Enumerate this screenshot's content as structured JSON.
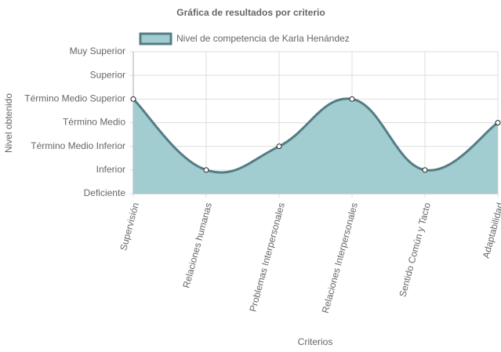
{
  "chart_data": {
    "type": "area",
    "title": "Gráfica de resultados por criterio",
    "x_label": "Criterios",
    "y_label": "Nivel obtenido",
    "categories": [
      "Supervisión",
      "Relaciones humanas",
      "Problemas Interpersonales",
      "Relaciones Interpersonales",
      "Sentido Común y Tacto",
      "Adaptabilidad"
    ],
    "series": [
      {
        "name": "Nivel de competencia de Karla Henández",
        "color": "#547c85",
        "fill": "#a1cdd1",
        "values": [
          4,
          1,
          2,
          4,
          1,
          3
        ]
      }
    ],
    "ylim": [
      0,
      6
    ],
    "yticks": [
      {
        "value": 0,
        "label": "Deficiente"
      },
      {
        "value": 1,
        "label": "Inferior"
      },
      {
        "value": 2,
        "label": "Término Medio Inferior"
      },
      {
        "value": 3,
        "label": "Término Medio"
      },
      {
        "value": 4,
        "label": "Término Medio Superior"
      },
      {
        "value": 5,
        "label": "Superior"
      },
      {
        "value": 6,
        "label": "Muy Superior"
      }
    ],
    "grid": true
  }
}
